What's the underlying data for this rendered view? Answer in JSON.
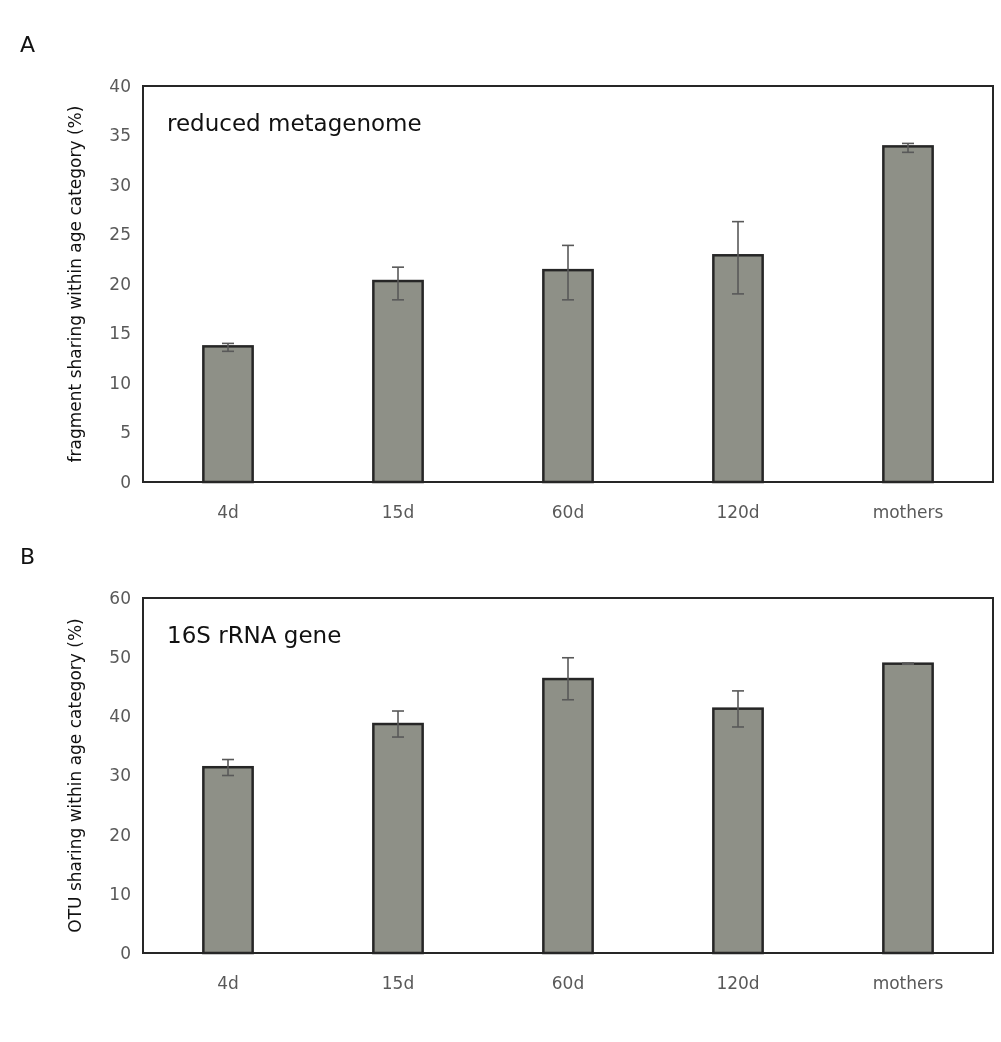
{
  "chart_data": [
    {
      "type": "bar",
      "title": "reduced metagenome",
      "ylabel": "fragment sharing within age category (%)",
      "annotations": [
        "A"
      ],
      "categories": [
        "4d",
        "15d",
        "60d",
        "120d",
        "mothers"
      ],
      "values": [
        13.7,
        20.3,
        21.4,
        22.9,
        33.9
      ],
      "errors": [
        [
          13.2,
          14.0
        ],
        [
          18.4,
          21.7
        ],
        [
          18.4,
          23.9
        ],
        [
          19.0,
          26.3
        ],
        [
          33.3,
          34.2
        ]
      ],
      "color": "#8e9087",
      "ylim": [
        0,
        40
      ],
      "yticks": [
        0,
        5,
        10,
        15,
        20,
        25,
        30,
        35,
        40
      ],
      "grid": false
    },
    {
      "type": "bar",
      "title": "16S rRNA gene",
      "ylabel": "OTU sharing within age category (%)",
      "annotations": [
        "B"
      ],
      "categories": [
        "4d",
        "15d",
        "60d",
        "120d",
        "mothers"
      ],
      "values": [
        31.4,
        38.7,
        46.3,
        41.3,
        48.9
      ],
      "errors": [
        [
          30.0,
          32.7
        ],
        [
          36.5,
          40.9
        ],
        [
          42.8,
          49.9
        ],
        [
          38.2,
          44.3
        ],
        [
          48.8,
          49.0
        ]
      ],
      "color": "#8e9087",
      "ylim": [
        0,
        60
      ],
      "yticks": [
        0,
        10,
        20,
        30,
        40,
        50,
        60
      ],
      "grid": false
    }
  ]
}
